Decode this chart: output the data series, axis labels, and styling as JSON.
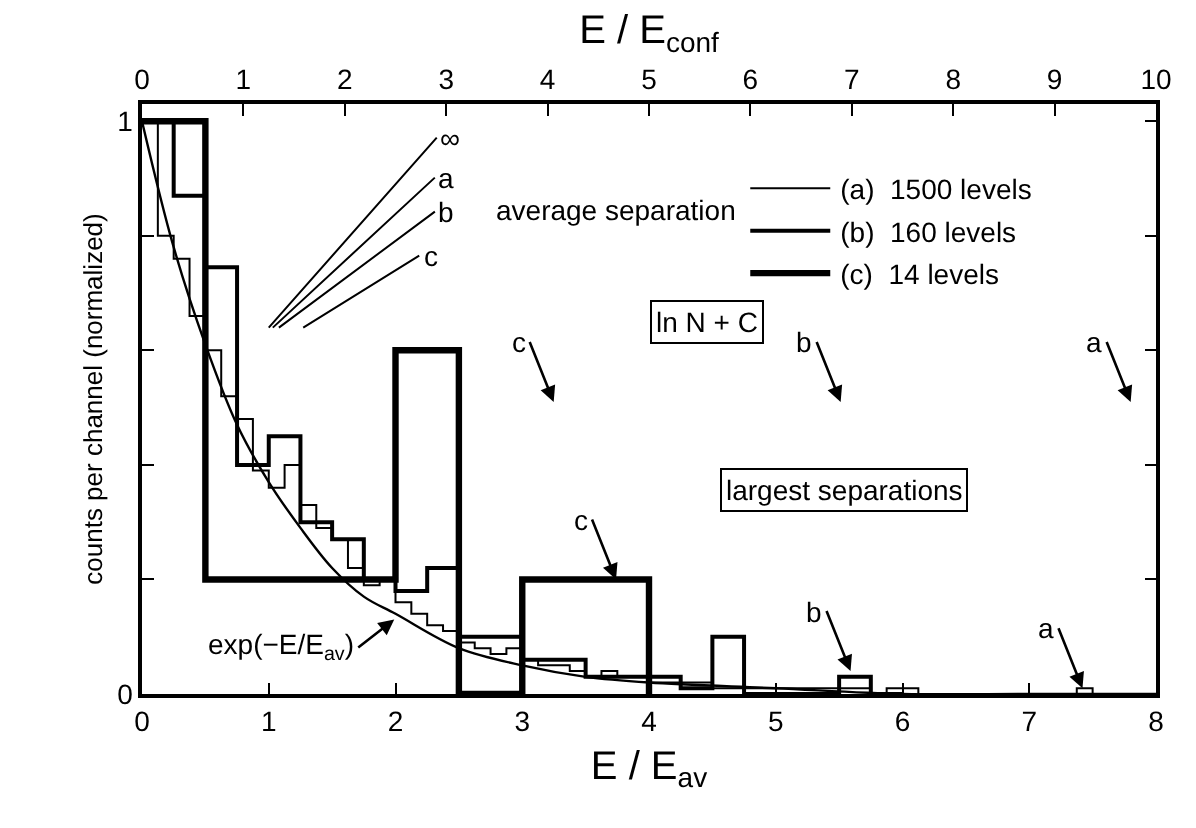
{
  "chart_data": {
    "type": "line",
    "xlabel": "E / E$_{av}$",
    "ylabel": "counts per channel (normalized)",
    "x2label": "E / E$_{conf}$",
    "xlim": [
      0,
      8
    ],
    "xticks": [
      0,
      1,
      2,
      3,
      4,
      5,
      6,
      7,
      8
    ],
    "x2lim": [
      0,
      10
    ],
    "x2ticks": [
      0,
      1,
      2,
      3,
      4,
      5,
      6,
      7,
      8,
      9,
      10
    ],
    "ylim": [
      0,
      1.03
    ],
    "yticks": [
      0,
      {
        "value": 0.2,
        "label": null
      },
      {
        "value": 0.4,
        "label": null
      },
      {
        "value": 0.6,
        "label": null
      },
      {
        "value": 0.8,
        "label": null
      },
      1
    ],
    "legend": "top right",
    "series": [
      {
        "type": "step",
        "name": "(a)  1500 levels",
        "color": "#000000",
        "x": [
          0,
          0.125,
          0.25,
          0.375,
          0.5,
          0.625,
          0.75,
          0.875,
          1,
          1.125,
          1.25,
          1.375,
          1.5,
          1.625,
          1.75,
          1.875,
          2,
          2.125,
          2.25,
          2.375,
          2.5,
          2.625,
          2.75,
          2.875,
          3,
          3.125,
          3.25,
          3.375,
          3.5,
          3.625,
          3.75,
          3.875,
          4,
          4.125,
          4.25,
          4.375,
          4.5,
          4.625,
          4.75,
          4.875,
          5,
          5.125,
          5.25,
          5.375,
          5.5,
          5.625,
          5.75,
          5.875,
          6,
          6.125,
          6.25,
          6.375,
          6.5,
          6.625,
          6.75,
          6.875,
          7,
          7.125,
          7.25,
          7.375,
          7.5
        ],
        "values": [
          1.0,
          0.8,
          0.76,
          0.66,
          0.6,
          0.52,
          0.48,
          0.39,
          0.36,
          0.4,
          0.33,
          0.29,
          0.27,
          0.22,
          0.19,
          0.2,
          0.16,
          0.14,
          0.12,
          0.11,
          0.09,
          0.08,
          0.07,
          0.08,
          0.06,
          0.05,
          0.05,
          0.04,
          0.03,
          0.04,
          0.03,
          0.03,
          0.02,
          0.02,
          0.02,
          0.02,
          0.01,
          0.01,
          0.01,
          0.01,
          0.01,
          0.01,
          0.01,
          0.01,
          0.01,
          0.01,
          0,
          0.01,
          0.01,
          0,
          0,
          0,
          0,
          0,
          0,
          0,
          0,
          0,
          0,
          0.01,
          0
        ]
      },
      {
        "type": "step",
        "name": "(b)  160 levels",
        "color": "#000000",
        "x": [
          0,
          0.25,
          0.5,
          0.75,
          1,
          1.25,
          1.5,
          1.75,
          2,
          2.25,
          2.5,
          2.75,
          3,
          3.25,
          3.5,
          3.75,
          4,
          4.25,
          4.5,
          4.75,
          5,
          5.25,
          5.5,
          5.75,
          6
        ],
        "values": [
          1.0,
          0.87,
          0.745,
          0.4,
          0.45,
          0.3,
          0.27,
          0.2,
          0.18,
          0.22,
          0.1,
          0.1,
          0.06,
          0.06,
          0.03,
          0.03,
          0.03,
          0.01,
          0.1,
          0,
          0,
          0,
          0.03,
          0,
          0
        ]
      },
      {
        "type": "step",
        "name": "(c)  14 levels",
        "color": "#000000",
        "x": [
          0,
          0.5,
          1,
          1.5,
          2,
          2.5,
          3,
          3.5,
          4
        ],
        "values": [
          1.0,
          0.2,
          0.2,
          0.2,
          0.6,
          0,
          0.2,
          0.2,
          0
        ]
      },
      {
        "color": "#000000",
        "x": [
          0,
          0.25,
          0.5,
          0.75,
          1,
          1.25,
          1.5,
          1.75,
          2,
          2.5,
          3,
          3.5,
          4,
          5,
          6,
          7,
          8
        ],
        "values": [
          1.0,
          0.78,
          0.61,
          0.47,
          0.37,
          0.29,
          0.22,
          0.17,
          0.14,
          0.08,
          0.05,
          0.03,
          0.02,
          0.01,
          0,
          0,
          0
        ]
      }
    ],
    "annotations": [
      "∞",
      "a",
      "b",
      "c",
      "average separation",
      "ln N + C",
      "c",
      "b",
      "a",
      "largest separations",
      {
        "text": "c",
        "x": 3.74,
        "y": 0.2
      },
      {
        "text": "b",
        "x": 5.59,
        "y": 0.04
      },
      {
        "text": "a",
        "x": 7.42,
        "y": 0.01
      },
      {
        "text": "exp(−E/E$_{av}$)",
        "x": 1.99,
        "y": 0.13
      }
    ]
  }
}
